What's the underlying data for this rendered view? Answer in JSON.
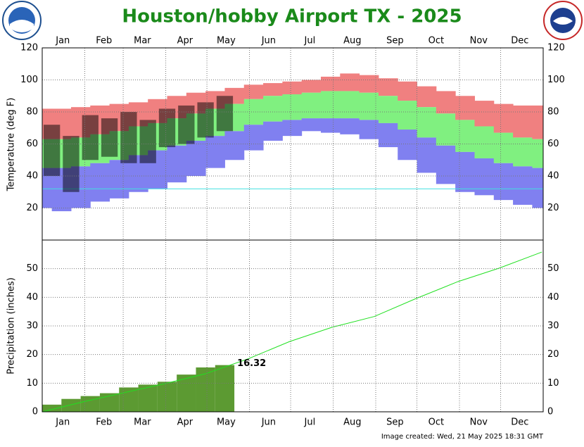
{
  "title": "Houston/hobby Airport TX - 2025",
  "footer": "Image created: Wed, 21 May 2025 18:31 GMT",
  "chart_data": [
    {
      "type": "range",
      "ylabel": "Temperature (deg F)",
      "xlim": [
        1,
        366
      ],
      "xticks": [
        {
          "value": 16,
          "label": "Jan"
        },
        {
          "value": 46,
          "label": "Feb"
        },
        {
          "value": 74,
          "label": "Mar"
        },
        {
          "value": 105,
          "label": "Apr"
        },
        {
          "value": 135,
          "label": "May"
        },
        {
          "value": 166,
          "label": "Jun"
        },
        {
          "value": 196,
          "label": "Jul"
        },
        {
          "value": 227,
          "label": "Aug"
        },
        {
          "value": 258,
          "label": "Sep"
        },
        {
          "value": 288,
          "label": "Oct"
        },
        {
          "value": 319,
          "label": "Nov"
        },
        {
          "value": 349,
          "label": "Dec"
        }
      ],
      "xgrid": [
        32,
        60,
        91,
        121,
        152,
        182,
        213,
        244,
        274,
        305,
        335
      ],
      "ylim": [
        0,
        120
      ],
      "yticks": [
        20,
        40,
        60,
        80,
        100,
        120
      ],
      "grid": true,
      "freezing": 32,
      "x": [
        1,
        15,
        29,
        43,
        57,
        71,
        85,
        99,
        113,
        127,
        141,
        155,
        169,
        183,
        197,
        211,
        225,
        239,
        253,
        267,
        281,
        295,
        309,
        323,
        337,
        351,
        365
      ],
      "series": [
        {
          "color": "#f08080",
          "values": [
            82,
            82,
            83,
            84,
            85,
            86,
            88,
            90,
            92,
            93,
            95,
            97,
            98,
            99,
            100,
            102,
            104,
            103,
            101,
            99,
            96,
            93,
            90,
            87,
            85,
            84,
            84
          ]
        },
        {
          "color": "#80f080",
          "values": [
            63,
            63,
            64,
            66,
            68,
            71,
            73,
            76,
            79,
            82,
            85,
            88,
            90,
            91,
            92,
            93,
            93,
            92,
            90,
            87,
            83,
            79,
            75,
            71,
            67,
            64,
            63
          ]
        },
        {
          "color": "#8080f0",
          "values": [
            45,
            45,
            46,
            48,
            50,
            53,
            56,
            59,
            62,
            65,
            68,
            72,
            74,
            75,
            76,
            76,
            76,
            75,
            73,
            69,
            64,
            59,
            55,
            51,
            48,
            46,
            45
          ]
        },
        {
          "values": [
            20,
            18,
            20,
            24,
            26,
            30,
            32,
            36,
            40,
            45,
            50,
            56,
            62,
            65,
            68,
            67,
            66,
            63,
            58,
            50,
            42,
            35,
            30,
            28,
            25,
            22,
            20
          ]
        }
      ],
      "observed": {
        "color": "#000000",
        "x": [
          8,
          22,
          36,
          50,
          64,
          78,
          92,
          106,
          120,
          134
        ],
        "high": [
          72,
          65,
          78,
          76,
          80,
          75,
          82,
          84,
          86,
          90
        ],
        "low": [
          40,
          30,
          50,
          52,
          48,
          48,
          58,
          60,
          64,
          68
        ]
      }
    },
    {
      "type": "bar",
      "ylabel": "Precipitation (inches)",
      "xlim": [
        1,
        366
      ],
      "xticks": [
        {
          "value": 16,
          "label": "Jan"
        },
        {
          "value": 46,
          "label": "Feb"
        },
        {
          "value": 74,
          "label": "Mar"
        },
        {
          "value": 105,
          "label": "Apr"
        },
        {
          "value": 135,
          "label": "May"
        },
        {
          "value": 166,
          "label": "Jun"
        },
        {
          "value": 196,
          "label": "Jul"
        },
        {
          "value": 227,
          "label": "Aug"
        },
        {
          "value": 258,
          "label": "Sep"
        },
        {
          "value": 288,
          "label": "Oct"
        },
        {
          "value": 319,
          "label": "Nov"
        },
        {
          "value": 349,
          "label": "Dec"
        }
      ],
      "xgrid": [
        32,
        60,
        91,
        121,
        152,
        182,
        213,
        244,
        274,
        305,
        335
      ],
      "ylim": [
        0,
        60
      ],
      "yticks": [
        0,
        10,
        20,
        30,
        40,
        50
      ],
      "grid": true,
      "observed": {
        "color": "#5c9a32",
        "x": [
          15,
          29,
          43,
          57,
          71,
          85,
          99,
          113,
          127,
          141
        ],
        "values": [
          2.5,
          4.5,
          5.5,
          6.5,
          8.5,
          9.5,
          10.5,
          13,
          15.5,
          16.32
        ],
        "value_labels": [
          null,
          null,
          null,
          null,
          null,
          null,
          null,
          null,
          null,
          "16.32"
        ]
      },
      "normal": {
        "color": "#20e020",
        "x": [
          1,
          31,
          59,
          90,
          120,
          151,
          181,
          212,
          243,
          273,
          304,
          334,
          365
        ],
        "values": [
          0,
          3.5,
          6.5,
          9.8,
          13.3,
          18.5,
          24.5,
          29.5,
          33.3,
          39.5,
          45.5,
          50.2,
          55.8
        ]
      }
    }
  ]
}
